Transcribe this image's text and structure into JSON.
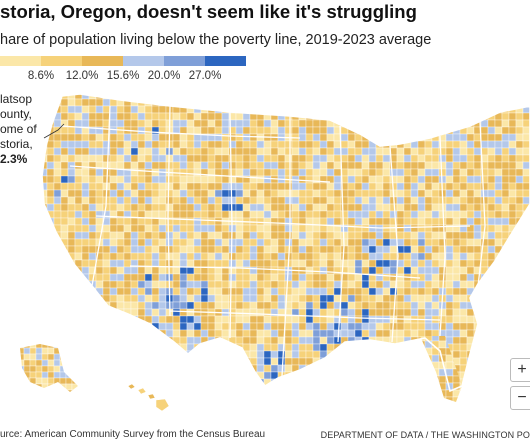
{
  "headline": "storia, Oregon, doesn't seem like it's struggling",
  "subheadline": "hare of population living below the poverty line, 2019-2023 average",
  "legend": {
    "ticks": [
      "8.6%",
      "12.0%",
      "15.6%",
      "20.0%",
      "27.0%"
    ],
    "colors": [
      "#fbe7a8",
      "#f6d27a",
      "#e8b858",
      "#b4c8ea",
      "#7f9fd8",
      "#2c66c0"
    ]
  },
  "annotation": {
    "lines": [
      "latsop",
      "ounty,",
      "ome of",
      "storia,"
    ],
    "value": "2.3%"
  },
  "zoom": {
    "in_label": "+",
    "out_label": "−"
  },
  "footer": {
    "source": "urce: American Community Survey from the Census Bureau",
    "credit": "DEPARTMENT OF DATA / THE WASHINGTON PO"
  }
}
